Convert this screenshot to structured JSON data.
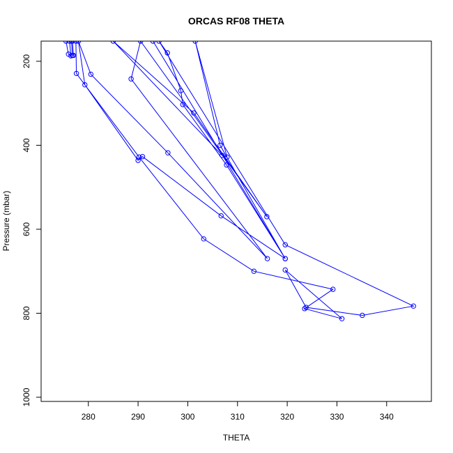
{
  "chart_data": {
    "type": "line",
    "title": "ORCAS RF08 THETA",
    "xlabel": "THETA",
    "ylabel": "Pressure (mbar)",
    "xlim": [
      270.5,
      349
    ],
    "ylim": [
      1010,
      152
    ],
    "y_reversed": true,
    "xticks": [
      280,
      290,
      300,
      310,
      320,
      330,
      340
    ],
    "yticks": [
      200,
      400,
      600,
      800,
      1000
    ],
    "grid": false,
    "line_color": "#0000ff",
    "marker": "open-circle",
    "series": [
      {
        "values": [
          [
            275.5,
            152
          ],
          [
            276.0,
            183
          ],
          [
            276.5,
            187
          ],
          [
            276.2,
            152
          ],
          [
            276.6,
            152
          ],
          [
            276.8,
            186
          ],
          [
            277.0,
            186
          ],
          [
            276.8,
            152
          ],
          [
            277.5,
            152
          ],
          [
            277.6,
            229
          ],
          [
            290.2,
            428
          ],
          [
            303.2,
            623
          ],
          [
            313.3,
            700
          ],
          [
            329.2,
            743
          ],
          [
            323.5,
            789
          ],
          [
            331.0,
            813
          ],
          [
            319.6,
            697
          ],
          [
            323.8,
            786
          ],
          [
            335.1,
            805
          ],
          [
            345.4,
            783
          ],
          [
            319.6,
            637
          ],
          [
            294.2,
            152
          ],
          [
            295.9,
            180
          ],
          [
            298.6,
            270
          ],
          [
            299.0,
            303
          ],
          [
            307.8,
            447
          ],
          [
            319.6,
            670
          ],
          [
            306.5,
            400
          ],
          [
            301.5,
            152
          ],
          [
            307.9,
            428
          ],
          [
            306.9,
            424
          ],
          [
            285.0,
            152
          ],
          [
            301.2,
            323
          ],
          [
            315.9,
            570
          ],
          [
            290.5,
            152
          ],
          [
            288.6,
            242
          ],
          [
            316.0,
            670
          ],
          [
            296.0,
            418
          ],
          [
            280.5,
            231
          ],
          [
            278.0,
            152
          ],
          [
            279.3,
            256
          ],
          [
            290.0,
            436
          ],
          [
            290.9,
            427
          ],
          [
            306.7,
            568
          ],
          [
            319.6,
            670
          ],
          [
            293.0,
            152
          ]
        ]
      }
    ]
  }
}
